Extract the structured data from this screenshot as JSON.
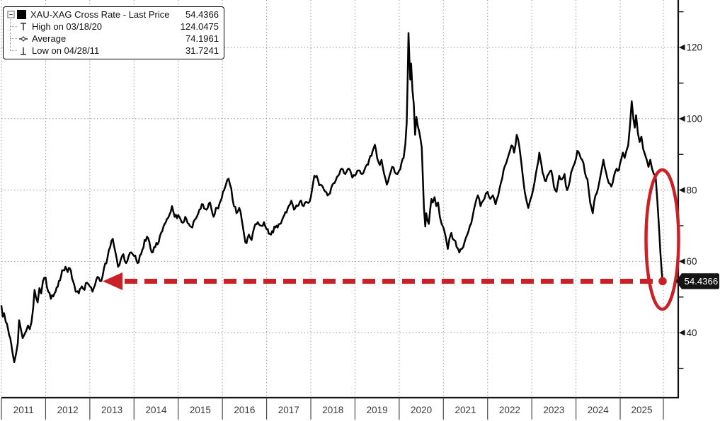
{
  "legend": {
    "rows": [
      {
        "icon": "series-swatch",
        "label": "XAU-XAG Cross Rate - Last Price",
        "value": "54.4366"
      },
      {
        "icon": "high-marker-icon",
        "label": "High on 03/18/20",
        "value": "124.0475"
      },
      {
        "icon": "average-marker-icon",
        "label": "Average",
        "value": "74.1961"
      },
      {
        "icon": "low-marker-icon",
        "label": "Low on 04/28/11",
        "value": "31.7241"
      }
    ]
  },
  "axes": {
    "y": {
      "side": "right",
      "major_ticks": [
        120,
        100,
        80,
        60,
        40
      ],
      "minor_ticks": [
        130,
        110,
        90,
        70,
        50,
        30
      ]
    },
    "x": {
      "years": [
        "2011",
        "2012",
        "2013",
        "2014",
        "2015",
        "2016",
        "2017",
        "2018",
        "2019",
        "2020",
        "2021",
        "2022",
        "2023",
        "2024",
        "2025"
      ]
    }
  },
  "annotations": {
    "last_price_tag": "54.4366",
    "arrow_level": 54.4366,
    "highlight": "ellipse-around-final-drop"
  },
  "colors": {
    "series": "#000000",
    "annotation_red": "#c92127",
    "grid": "#9a9a9a",
    "axis": "#111111",
    "tick_label": "#1c1c1c",
    "year_label": "#3a3a3a",
    "tag_bg": "#141414",
    "tag_text": "#ffffff"
  },
  "chart_data": {
    "type": "line",
    "title": "XAU-XAG Cross Rate - Last Price",
    "xlabel": "",
    "ylabel": "",
    "x_range": [
      2011.0,
      2026.0
    ],
    "ylim": [
      22,
      131
    ],
    "grid": "dotted",
    "legend_position": "top-left",
    "last_price": 54.4366,
    "high": {
      "date": "03/18/20",
      "value": 124.0475
    },
    "average": 74.1961,
    "low": {
      "date": "04/28/11",
      "value": 31.7241
    },
    "series": [
      {
        "name": "XAU-XAG Cross Rate",
        "points": [
          [
            2011.0,
            47.5
          ],
          [
            2011.03,
            44.5
          ],
          [
            2011.06,
            45.5
          ],
          [
            2011.1,
            43.0
          ],
          [
            2011.15,
            41.0
          ],
          [
            2011.2,
            38.5
          ],
          [
            2011.25,
            34.5
          ],
          [
            2011.29,
            31.72
          ],
          [
            2011.33,
            34.0
          ],
          [
            2011.37,
            37.0
          ],
          [
            2011.4,
            43.5
          ],
          [
            2011.44,
            41.0
          ],
          [
            2011.48,
            38.5
          ],
          [
            2011.52,
            39.5
          ],
          [
            2011.56,
            40.5
          ],
          [
            2011.6,
            42.0
          ],
          [
            2011.64,
            41.0
          ],
          [
            2011.68,
            43.0
          ],
          [
            2011.72,
            47.0
          ],
          [
            2011.75,
            52.0
          ],
          [
            2011.78,
            50.0
          ],
          [
            2011.82,
            48.5
          ],
          [
            2011.86,
            52.5
          ],
          [
            2011.9,
            51.0
          ],
          [
            2011.94,
            54.5
          ],
          [
            2012.0,
            55.5
          ],
          [
            2012.06,
            51.5
          ],
          [
            2012.12,
            49.5
          ],
          [
            2012.2,
            51.0
          ],
          [
            2012.3,
            54.5
          ],
          [
            2012.4,
            57.5
          ],
          [
            2012.45,
            58.5
          ],
          [
            2012.5,
            57.0
          ],
          [
            2012.55,
            58.0
          ],
          [
            2012.62,
            54.5
          ],
          [
            2012.68,
            51.5
          ],
          [
            2012.75,
            51.0
          ],
          [
            2012.82,
            53.0
          ],
          [
            2012.88,
            52.0
          ],
          [
            2012.94,
            54.0
          ],
          [
            2013.0,
            53.0
          ],
          [
            2013.06,
            51.5
          ],
          [
            2013.12,
            53.5
          ],
          [
            2013.2,
            55.5
          ],
          [
            2013.26,
            54.5
          ],
          [
            2013.32,
            58.0
          ],
          [
            2013.4,
            61.0
          ],
          [
            2013.46,
            64.0
          ],
          [
            2013.52,
            66.3
          ],
          [
            2013.58,
            62.5
          ],
          [
            2013.64,
            58.5
          ],
          [
            2013.7,
            60.5
          ],
          [
            2013.76,
            62.0
          ],
          [
            2013.82,
            59.5
          ],
          [
            2013.88,
            61.5
          ],
          [
            2013.94,
            62.5
          ],
          [
            2014.0,
            61.5
          ],
          [
            2014.08,
            59.5
          ],
          [
            2014.16,
            62.0
          ],
          [
            2014.24,
            66.0
          ],
          [
            2014.32,
            66.5
          ],
          [
            2014.4,
            62.5
          ],
          [
            2014.48,
            64.0
          ],
          [
            2014.56,
            65.5
          ],
          [
            2014.64,
            68.5
          ],
          [
            2014.72,
            71.0
          ],
          [
            2014.8,
            73.0
          ],
          [
            2014.86,
            75.5
          ],
          [
            2014.92,
            72.5
          ],
          [
            2015.0,
            73.0
          ],
          [
            2015.08,
            71.0
          ],
          [
            2015.16,
            72.5
          ],
          [
            2015.24,
            70.5
          ],
          [
            2015.32,
            69.5
          ],
          [
            2015.4,
            72.0
          ],
          [
            2015.48,
            74.5
          ],
          [
            2015.56,
            76.0
          ],
          [
            2015.64,
            74.5
          ],
          [
            2015.72,
            76.5
          ],
          [
            2015.8,
            72.5
          ],
          [
            2015.88,
            75.0
          ],
          [
            2015.96,
            77.0
          ],
          [
            2016.04,
            80.0
          ],
          [
            2016.08,
            81.5
          ],
          [
            2016.14,
            83.2
          ],
          [
            2016.2,
            80.5
          ],
          [
            2016.26,
            75.5
          ],
          [
            2016.32,
            73.5
          ],
          [
            2016.38,
            75.0
          ],
          [
            2016.44,
            71.5
          ],
          [
            2016.52,
            65.3
          ],
          [
            2016.6,
            67.5
          ],
          [
            2016.66,
            66.0
          ],
          [
            2016.72,
            69.5
          ],
          [
            2016.8,
            71.0
          ],
          [
            2016.88,
            70.0
          ],
          [
            2016.94,
            71.0
          ],
          [
            2017.0,
            69.0
          ],
          [
            2017.1,
            67.5
          ],
          [
            2017.2,
            69.5
          ],
          [
            2017.3,
            70.5
          ],
          [
            2017.4,
            73.0
          ],
          [
            2017.5,
            75.5
          ],
          [
            2017.56,
            77.0
          ],
          [
            2017.62,
            74.5
          ],
          [
            2017.7,
            75.5
          ],
          [
            2017.78,
            77.0
          ],
          [
            2017.84,
            75.5
          ],
          [
            2017.92,
            76.5
          ],
          [
            2018.0,
            78.0
          ],
          [
            2018.08,
            84.0
          ],
          [
            2018.16,
            83.0
          ],
          [
            2018.22,
            81.5
          ],
          [
            2018.3,
            80.0
          ],
          [
            2018.38,
            78.5
          ],
          [
            2018.46,
            80.5
          ],
          [
            2018.54,
            82.0
          ],
          [
            2018.62,
            84.0
          ],
          [
            2018.7,
            86.0
          ],
          [
            2018.78,
            84.5
          ],
          [
            2018.86,
            86.0
          ],
          [
            2018.94,
            83.5
          ],
          [
            2019.0,
            84.0
          ],
          [
            2019.08,
            85.5
          ],
          [
            2019.16,
            84.5
          ],
          [
            2019.24,
            86.5
          ],
          [
            2019.32,
            88.5
          ],
          [
            2019.4,
            91.0
          ],
          [
            2019.45,
            92.7
          ],
          [
            2019.5,
            89.0
          ],
          [
            2019.56,
            87.0
          ],
          [
            2019.6,
            88.5
          ],
          [
            2019.66,
            84.5
          ],
          [
            2019.72,
            81.5
          ],
          [
            2019.78,
            84.0
          ],
          [
            2019.84,
            86.5
          ],
          [
            2019.9,
            85.0
          ],
          [
            2019.96,
            84.5
          ],
          [
            2020.0,
            85.5
          ],
          [
            2020.05,
            87.5
          ],
          [
            2020.1,
            89.0
          ],
          [
            2020.14,
            93.0
          ],
          [
            2020.17,
            99.0
          ],
          [
            2020.19,
            110.0
          ],
          [
            2020.21,
            124.05
          ],
          [
            2020.23,
            117.0
          ],
          [
            2020.25,
            111.0
          ],
          [
            2020.27,
            115.5
          ],
          [
            2020.3,
            108.0
          ],
          [
            2020.33,
            104.0
          ],
          [
            2020.36,
            95.5
          ],
          [
            2020.39,
            100.5
          ],
          [
            2020.42,
            98.0
          ],
          [
            2020.45,
            96.5
          ],
          [
            2020.48,
            94.5
          ],
          [
            2020.51,
            92.0
          ],
          [
            2020.53,
            85.0
          ],
          [
            2020.56,
            75.0
          ],
          [
            2020.59,
            69.8
          ],
          [
            2020.61,
            73.5
          ],
          [
            2020.64,
            71.5
          ],
          [
            2020.67,
            70.5
          ],
          [
            2020.7,
            74.5
          ],
          [
            2020.73,
            77.5
          ],
          [
            2020.76,
            76.5
          ],
          [
            2020.8,
            78.0
          ],
          [
            2020.84,
            75.5
          ],
          [
            2020.88,
            76.5
          ],
          [
            2020.92,
            72.5
          ],
          [
            2020.96,
            70.5
          ],
          [
            2021.0,
            69.5
          ],
          [
            2021.05,
            67.0
          ],
          [
            2021.1,
            63.5
          ],
          [
            2021.14,
            66.5
          ],
          [
            2021.18,
            68.0
          ],
          [
            2021.24,
            66.0
          ],
          [
            2021.3,
            64.0
          ],
          [
            2021.36,
            62.5
          ],
          [
            2021.42,
            63.5
          ],
          [
            2021.48,
            65.5
          ],
          [
            2021.54,
            67.5
          ],
          [
            2021.6,
            70.0
          ],
          [
            2021.66,
            72.5
          ],
          [
            2021.72,
            76.0
          ],
          [
            2021.78,
            78.5
          ],
          [
            2021.84,
            75.5
          ],
          [
            2021.9,
            77.0
          ],
          [
            2021.96,
            79.0
          ],
          [
            2022.0,
            79.5
          ],
          [
            2022.06,
            77.5
          ],
          [
            2022.12,
            78.5
          ],
          [
            2022.18,
            76.0
          ],
          [
            2022.24,
            78.5
          ],
          [
            2022.3,
            82.0
          ],
          [
            2022.36,
            85.5
          ],
          [
            2022.42,
            87.5
          ],
          [
            2022.48,
            90.0
          ],
          [
            2022.54,
            92.5
          ],
          [
            2022.6,
            90.5
          ],
          [
            2022.66,
            95.5
          ],
          [
            2022.72,
            92.0
          ],
          [
            2022.76,
            88.0
          ],
          [
            2022.8,
            83.5
          ],
          [
            2022.84,
            79.5
          ],
          [
            2022.88,
            77.0
          ],
          [
            2022.92,
            75.0
          ],
          [
            2022.96,
            77.0
          ],
          [
            2023.0,
            78.5
          ],
          [
            2023.06,
            82.0
          ],
          [
            2023.12,
            86.5
          ],
          [
            2023.17,
            90.5
          ],
          [
            2023.22,
            87.0
          ],
          [
            2023.27,
            84.0
          ],
          [
            2023.32,
            82.5
          ],
          [
            2023.38,
            84.5
          ],
          [
            2023.44,
            85.5
          ],
          [
            2023.5,
            81.0
          ],
          [
            2023.56,
            79.5
          ],
          [
            2023.62,
            84.0
          ],
          [
            2023.68,
            83.0
          ],
          [
            2023.74,
            84.5
          ],
          [
            2023.8,
            80.0
          ],
          [
            2023.86,
            82.5
          ],
          [
            2023.92,
            86.0
          ],
          [
            2023.97,
            87.5
          ],
          [
            2024.03,
            91.0
          ],
          [
            2024.08,
            90.0
          ],
          [
            2024.14,
            88.5
          ],
          [
            2024.2,
            85.0
          ],
          [
            2024.26,
            83.0
          ],
          [
            2024.32,
            76.5
          ],
          [
            2024.38,
            73.5
          ],
          [
            2024.44,
            78.5
          ],
          [
            2024.5,
            80.5
          ],
          [
            2024.56,
            84.5
          ],
          [
            2024.62,
            88.5
          ],
          [
            2024.68,
            85.0
          ],
          [
            2024.74,
            82.0
          ],
          [
            2024.8,
            81.0
          ],
          [
            2024.86,
            84.0
          ],
          [
            2024.92,
            86.0
          ],
          [
            2024.97,
            85.5
          ],
          [
            2025.02,
            88.5
          ],
          [
            2025.06,
            90.5
          ],
          [
            2025.1,
            89.0
          ],
          [
            2025.14,
            91.0
          ],
          [
            2025.18,
            92.5
          ],
          [
            2025.22,
            98.0
          ],
          [
            2025.26,
            104.9
          ],
          [
            2025.3,
            100.0
          ],
          [
            2025.33,
            97.5
          ],
          [
            2025.36,
            101.0
          ],
          [
            2025.4,
            96.0
          ],
          [
            2025.44,
            93.5
          ],
          [
            2025.48,
            95.0
          ],
          [
            2025.52,
            91.5
          ],
          [
            2025.56,
            90.0
          ],
          [
            2025.6,
            88.5
          ],
          [
            2025.64,
            86.5
          ],
          [
            2025.68,
            88.5
          ],
          [
            2025.72,
            86.0
          ],
          [
            2025.76,
            84.5
          ],
          [
            2025.8,
            84.0
          ],
          [
            2025.84,
            77.0
          ],
          [
            2025.88,
            69.0
          ],
          [
            2025.91,
            62.5
          ],
          [
            2025.94,
            57.0
          ],
          [
            2025.96,
            54.44
          ]
        ]
      }
    ]
  }
}
